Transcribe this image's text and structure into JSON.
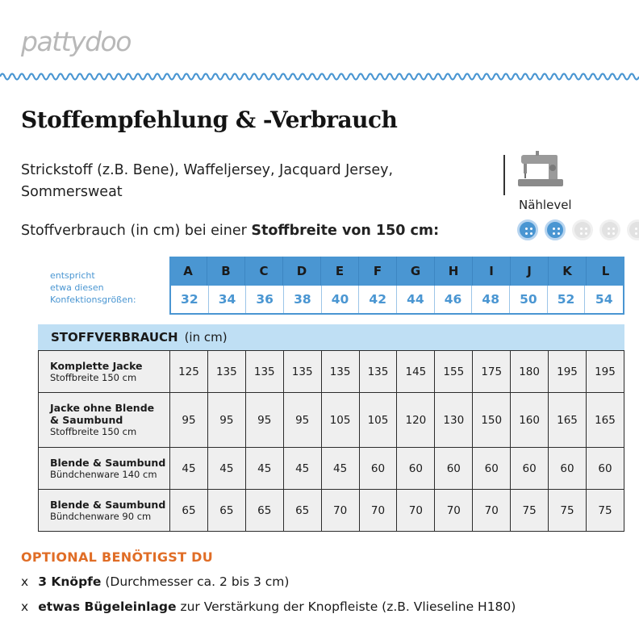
{
  "brand": {
    "logo": "pattydoo",
    "wave_color": "#4a96d2"
  },
  "title": "Stoffempfehlung & -Verbrauch",
  "fabrics": {
    "line1": "Strickstoff (z.B. Bene), Waffeljersey, Jacquard Jersey,",
    "line2": "Sommersweat"
  },
  "usage": {
    "prefix": "Stoffverbrauch (in cm) bei einer",
    "bold": "Stoffbreite von 150 cm:"
  },
  "sewing_level": {
    "label": "Nählevel",
    "level": 2,
    "max": 5,
    "icon": "sewing-machine-icon"
  },
  "sizes": {
    "label_line1": "entspricht",
    "label_line2": "etwa diesen",
    "label_line3": "Konfektionsgrößen:",
    "letters": [
      "A",
      "B",
      "C",
      "D",
      "E",
      "F",
      "G",
      "H",
      "I",
      "J",
      "K",
      "L"
    ],
    "numbers": [
      "32",
      "34",
      "36",
      "38",
      "40",
      "42",
      "44",
      "46",
      "48",
      "50",
      "52",
      "54"
    ]
  },
  "consumption": {
    "header_bold": "STOFFVERBRAUCH",
    "header_unit": "(in cm)",
    "rows": [
      {
        "label1": "Komplette Jacke",
        "label2": "",
        "label3": "Stoffbreite 150 cm",
        "values": [
          "125",
          "135",
          "135",
          "135",
          "135",
          "135",
          "145",
          "155",
          "175",
          "180",
          "195",
          "195"
        ]
      },
      {
        "label1": "Jacke ohne Blende",
        "label2": "& Saumbund",
        "label3": "Stoffbreite 150 cm",
        "values": [
          "95",
          "95",
          "95",
          "95",
          "105",
          "105",
          "120",
          "130",
          "150",
          "160",
          "165",
          "165"
        ]
      },
      {
        "label1": "Blende & Saumbund",
        "label2": "",
        "label3": "Bündchenware 140 cm",
        "values": [
          "45",
          "45",
          "45",
          "45",
          "45",
          "60",
          "60",
          "60",
          "60",
          "60",
          "60",
          "60"
        ]
      },
      {
        "label1": "Blende & Saumbund",
        "label2": "",
        "label3": "Bündchenware 90 cm",
        "values": [
          "65",
          "65",
          "65",
          "65",
          "70",
          "70",
          "70",
          "70",
          "70",
          "75",
          "75",
          "75"
        ]
      }
    ]
  },
  "optional": {
    "title": "OPTIONAL BENÖTIGST DU",
    "items": [
      {
        "bullet": "x",
        "bold": "3 Knöpfe",
        "rest": "(Durchmesser ca. 2 bis 3 cm)"
      },
      {
        "bullet": "x",
        "bold": "etwas Bügeleinlage",
        "rest": "zur Verstärkung der Knopfleiste (z.B. Vlieseline H180)"
      }
    ]
  }
}
